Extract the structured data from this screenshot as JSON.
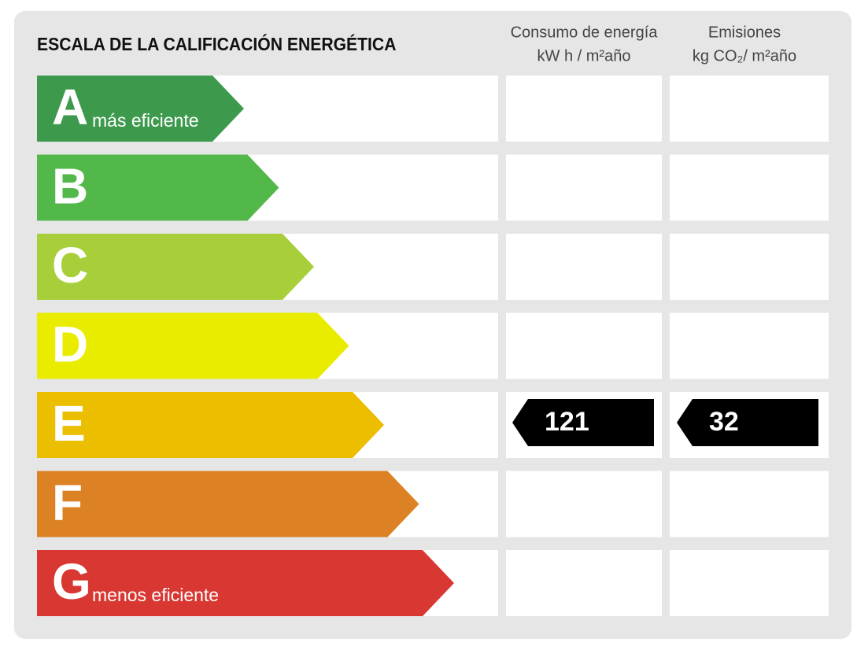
{
  "title": "ESCALA DE LA CALIFICACIÓN ENERGÉTICA",
  "columns": [
    {
      "label": "Consumo de energía",
      "unit": "kW h / m²año"
    },
    {
      "label": "Emisiones",
      "unit": "kg CO₂/ m²año"
    }
  ],
  "ratings": [
    {
      "letter": "A",
      "note": "más eficiente",
      "color": "#3d9a4d"
    },
    {
      "letter": "B",
      "color": "#52b84a"
    },
    {
      "letter": "C",
      "color": "#a8cf3a"
    },
    {
      "letter": "D",
      "color": "#eaec00"
    },
    {
      "letter": "E",
      "color": "#ecbe00",
      "consumo": 121,
      "emisiones": 32
    },
    {
      "letter": "F",
      "color": "#dd8224"
    },
    {
      "letter": "G",
      "note": "menos eficiente",
      "color": "#d93732"
    }
  ]
}
